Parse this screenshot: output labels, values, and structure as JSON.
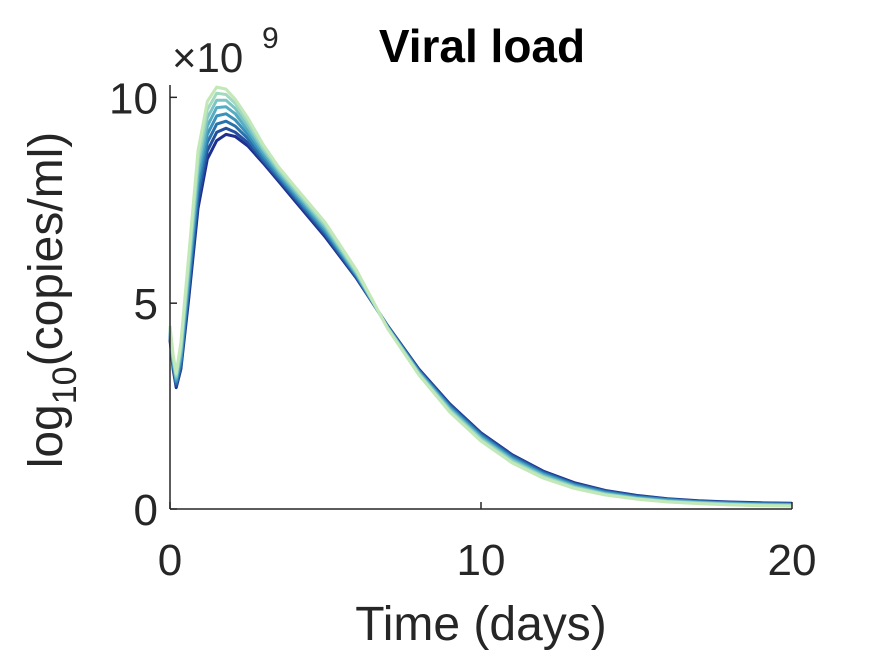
{
  "chart_data": {
    "type": "line",
    "title": "Viral load",
    "xlabel": "Time (days)",
    "ylabel": {
      "base": "log",
      "subscript": "10",
      "rest": "(copies/ml)"
    },
    "y_multiplier": {
      "times": "×10",
      "exponent": "9"
    },
    "xlim": [
      0,
      20
    ],
    "ylim": [
      0,
      10.3
    ],
    "x_ticks": [
      "0",
      "10",
      "20"
    ],
    "y_ticks": [
      "0",
      "5",
      "10"
    ],
    "x_tick_values": [
      0,
      10,
      20
    ],
    "y_tick_values": [
      0,
      5,
      10
    ],
    "grid": false,
    "series_colors": [
      "#1f2f8f",
      "#23509e",
      "#2b72ad",
      "#3a92bb",
      "#56acc1",
      "#7cc5c4",
      "#a3d9bf",
      "#c2e8b8"
    ],
    "series": [
      {
        "values": [
          [
            0,
            4.1
          ],
          [
            0.1,
            3.4
          ],
          [
            0.2,
            2.95
          ],
          [
            0.35,
            3.4
          ],
          [
            0.6,
            5.1
          ],
          [
            0.9,
            7.3
          ],
          [
            1.2,
            8.5
          ],
          [
            1.5,
            8.95
          ],
          [
            1.8,
            9.1
          ],
          [
            2.1,
            9.05
          ],
          [
            2.5,
            8.82
          ],
          [
            3,
            8.4
          ],
          [
            3.5,
            7.95
          ],
          [
            4,
            7.5
          ],
          [
            5,
            6.6
          ],
          [
            6,
            5.6
          ],
          [
            7,
            4.45
          ],
          [
            8,
            3.4
          ],
          [
            9,
            2.55
          ],
          [
            10,
            1.85
          ],
          [
            11,
            1.32
          ],
          [
            12,
            0.92
          ],
          [
            13,
            0.64
          ],
          [
            14,
            0.45
          ],
          [
            15,
            0.33
          ],
          [
            16,
            0.25
          ],
          [
            17,
            0.2
          ],
          [
            18,
            0.17
          ],
          [
            19,
            0.15
          ],
          [
            20,
            0.14
          ]
        ]
      },
      {
        "values": [
          [
            0,
            4.15
          ],
          [
            0.1,
            3.45
          ],
          [
            0.2,
            3.0
          ],
          [
            0.35,
            3.45
          ],
          [
            0.6,
            5.25
          ],
          [
            0.9,
            7.5
          ],
          [
            1.2,
            8.7
          ],
          [
            1.5,
            9.15
          ],
          [
            1.8,
            9.25
          ],
          [
            2.1,
            9.15
          ],
          [
            2.5,
            8.9
          ],
          [
            3,
            8.45
          ],
          [
            3.5,
            8.0
          ],
          [
            4,
            7.55
          ],
          [
            5,
            6.65
          ],
          [
            6,
            5.62
          ],
          [
            7,
            4.44
          ],
          [
            8,
            3.38
          ],
          [
            9,
            2.53
          ],
          [
            10,
            1.83
          ],
          [
            11,
            1.3
          ],
          [
            12,
            0.9
          ],
          [
            13,
            0.62
          ],
          [
            14,
            0.44
          ],
          [
            15,
            0.32
          ],
          [
            16,
            0.24
          ],
          [
            17,
            0.19
          ],
          [
            18,
            0.16
          ],
          [
            19,
            0.14
          ],
          [
            20,
            0.13
          ]
        ]
      },
      {
        "values": [
          [
            0,
            4.2
          ],
          [
            0.1,
            3.5
          ],
          [
            0.2,
            3.05
          ],
          [
            0.35,
            3.55
          ],
          [
            0.6,
            5.4
          ],
          [
            0.9,
            7.7
          ],
          [
            1.2,
            8.9
          ],
          [
            1.5,
            9.35
          ],
          [
            1.8,
            9.42
          ],
          [
            2.1,
            9.3
          ],
          [
            2.5,
            9.0
          ],
          [
            3,
            8.5
          ],
          [
            3.5,
            8.05
          ],
          [
            4,
            7.6
          ],
          [
            5,
            6.7
          ],
          [
            6,
            5.65
          ],
          [
            7,
            4.43
          ],
          [
            8,
            3.36
          ],
          [
            9,
            2.5
          ],
          [
            10,
            1.8
          ],
          [
            11,
            1.27
          ],
          [
            12,
            0.88
          ],
          [
            13,
            0.6
          ],
          [
            14,
            0.42
          ],
          [
            15,
            0.3
          ],
          [
            16,
            0.23
          ],
          [
            17,
            0.18
          ],
          [
            18,
            0.15
          ],
          [
            19,
            0.13
          ],
          [
            20,
            0.12
          ]
        ]
      },
      {
        "values": [
          [
            0,
            4.25
          ],
          [
            0.1,
            3.55
          ],
          [
            0.2,
            3.1
          ],
          [
            0.35,
            3.65
          ],
          [
            0.6,
            5.55
          ],
          [
            0.9,
            7.9
          ],
          [
            1.2,
            9.1
          ],
          [
            1.5,
            9.55
          ],
          [
            1.8,
            9.6
          ],
          [
            2.1,
            9.45
          ],
          [
            2.5,
            9.1
          ],
          [
            3,
            8.58
          ],
          [
            3.5,
            8.1
          ],
          [
            4,
            7.65
          ],
          [
            5,
            6.75
          ],
          [
            6,
            5.68
          ],
          [
            7,
            4.42
          ],
          [
            8,
            3.34
          ],
          [
            9,
            2.47
          ],
          [
            10,
            1.77
          ],
          [
            11,
            1.24
          ],
          [
            12,
            0.85
          ],
          [
            13,
            0.58
          ],
          [
            14,
            0.4
          ],
          [
            15,
            0.29
          ],
          [
            16,
            0.22
          ],
          [
            17,
            0.17
          ],
          [
            18,
            0.14
          ],
          [
            19,
            0.12
          ],
          [
            20,
            0.11
          ]
        ]
      },
      {
        "values": [
          [
            0,
            4.3
          ],
          [
            0.1,
            3.6
          ],
          [
            0.2,
            3.15
          ],
          [
            0.35,
            3.75
          ],
          [
            0.6,
            5.7
          ],
          [
            0.9,
            8.1
          ],
          [
            1.2,
            9.3
          ],
          [
            1.5,
            9.75
          ],
          [
            1.8,
            9.77
          ],
          [
            2.1,
            9.6
          ],
          [
            2.5,
            9.2
          ],
          [
            3,
            8.65
          ],
          [
            3.5,
            8.15
          ],
          [
            4,
            7.7
          ],
          [
            5,
            6.8
          ],
          [
            6,
            5.7
          ],
          [
            7,
            4.41
          ],
          [
            8,
            3.32
          ],
          [
            9,
            2.44
          ],
          [
            10,
            1.74
          ],
          [
            11,
            1.21
          ],
          [
            12,
            0.83
          ],
          [
            13,
            0.56
          ],
          [
            14,
            0.38
          ],
          [
            15,
            0.27
          ],
          [
            16,
            0.2
          ],
          [
            17,
            0.16
          ],
          [
            18,
            0.13
          ],
          [
            19,
            0.11
          ],
          [
            20,
            0.1
          ]
        ]
      },
      {
        "values": [
          [
            0,
            4.35
          ],
          [
            0.1,
            3.65
          ],
          [
            0.2,
            3.2
          ],
          [
            0.35,
            3.85
          ],
          [
            0.6,
            5.85
          ],
          [
            0.9,
            8.3
          ],
          [
            1.2,
            9.5
          ],
          [
            1.5,
            9.93
          ],
          [
            1.8,
            9.93
          ],
          [
            2.1,
            9.73
          ],
          [
            2.5,
            9.3
          ],
          [
            3,
            8.72
          ],
          [
            3.5,
            8.2
          ],
          [
            4,
            7.75
          ],
          [
            5,
            6.85
          ],
          [
            6,
            5.73
          ],
          [
            7,
            4.4
          ],
          [
            8,
            3.3
          ],
          [
            9,
            2.41
          ],
          [
            10,
            1.71
          ],
          [
            11,
            1.18
          ],
          [
            12,
            0.8
          ],
          [
            13,
            0.54
          ],
          [
            14,
            0.37
          ],
          [
            15,
            0.26
          ],
          [
            16,
            0.19
          ],
          [
            17,
            0.15
          ],
          [
            18,
            0.12
          ],
          [
            19,
            0.1
          ],
          [
            20,
            0.09
          ]
        ]
      },
      {
        "values": [
          [
            0,
            4.4
          ],
          [
            0.1,
            3.7
          ],
          [
            0.2,
            3.25
          ],
          [
            0.35,
            3.95
          ],
          [
            0.6,
            6.0
          ],
          [
            0.9,
            8.5
          ],
          [
            1.2,
            9.7
          ],
          [
            1.5,
            10.1
          ],
          [
            1.8,
            10.07
          ],
          [
            2.1,
            9.85
          ],
          [
            2.5,
            9.4
          ],
          [
            3,
            8.78
          ],
          [
            3.5,
            8.25
          ],
          [
            4,
            7.8
          ],
          [
            5,
            6.9
          ],
          [
            6,
            5.76
          ],
          [
            7,
            4.39
          ],
          [
            8,
            3.28
          ],
          [
            9,
            2.38
          ],
          [
            10,
            1.68
          ],
          [
            11,
            1.15
          ],
          [
            12,
            0.78
          ],
          [
            13,
            0.52
          ],
          [
            14,
            0.35
          ],
          [
            15,
            0.25
          ],
          [
            16,
            0.18
          ],
          [
            17,
            0.14
          ],
          [
            18,
            0.11
          ],
          [
            19,
            0.09
          ],
          [
            20,
            0.08
          ]
        ]
      },
      {
        "values": [
          [
            0,
            4.45
          ],
          [
            0.1,
            3.75
          ],
          [
            0.2,
            3.3
          ],
          [
            0.35,
            4.05
          ],
          [
            0.6,
            6.15
          ],
          [
            0.9,
            8.7
          ],
          [
            1.2,
            9.9
          ],
          [
            1.5,
            10.25
          ],
          [
            1.8,
            10.2
          ],
          [
            2.1,
            9.95
          ],
          [
            2.5,
            9.5
          ],
          [
            3,
            8.85
          ],
          [
            3.5,
            8.3
          ],
          [
            4,
            7.85
          ],
          [
            5,
            6.95
          ],
          [
            6,
            5.8
          ],
          [
            7,
            4.38
          ],
          [
            8,
            3.26
          ],
          [
            9,
            2.35
          ],
          [
            10,
            1.65
          ],
          [
            11,
            1.12
          ],
          [
            12,
            0.75
          ],
          [
            13,
            0.5
          ],
          [
            14,
            0.34
          ],
          [
            15,
            0.24
          ],
          [
            16,
            0.17
          ],
          [
            17,
            0.13
          ],
          [
            18,
            0.1
          ],
          [
            19,
            0.08
          ],
          [
            20,
            0.07
          ]
        ]
      }
    ]
  }
}
